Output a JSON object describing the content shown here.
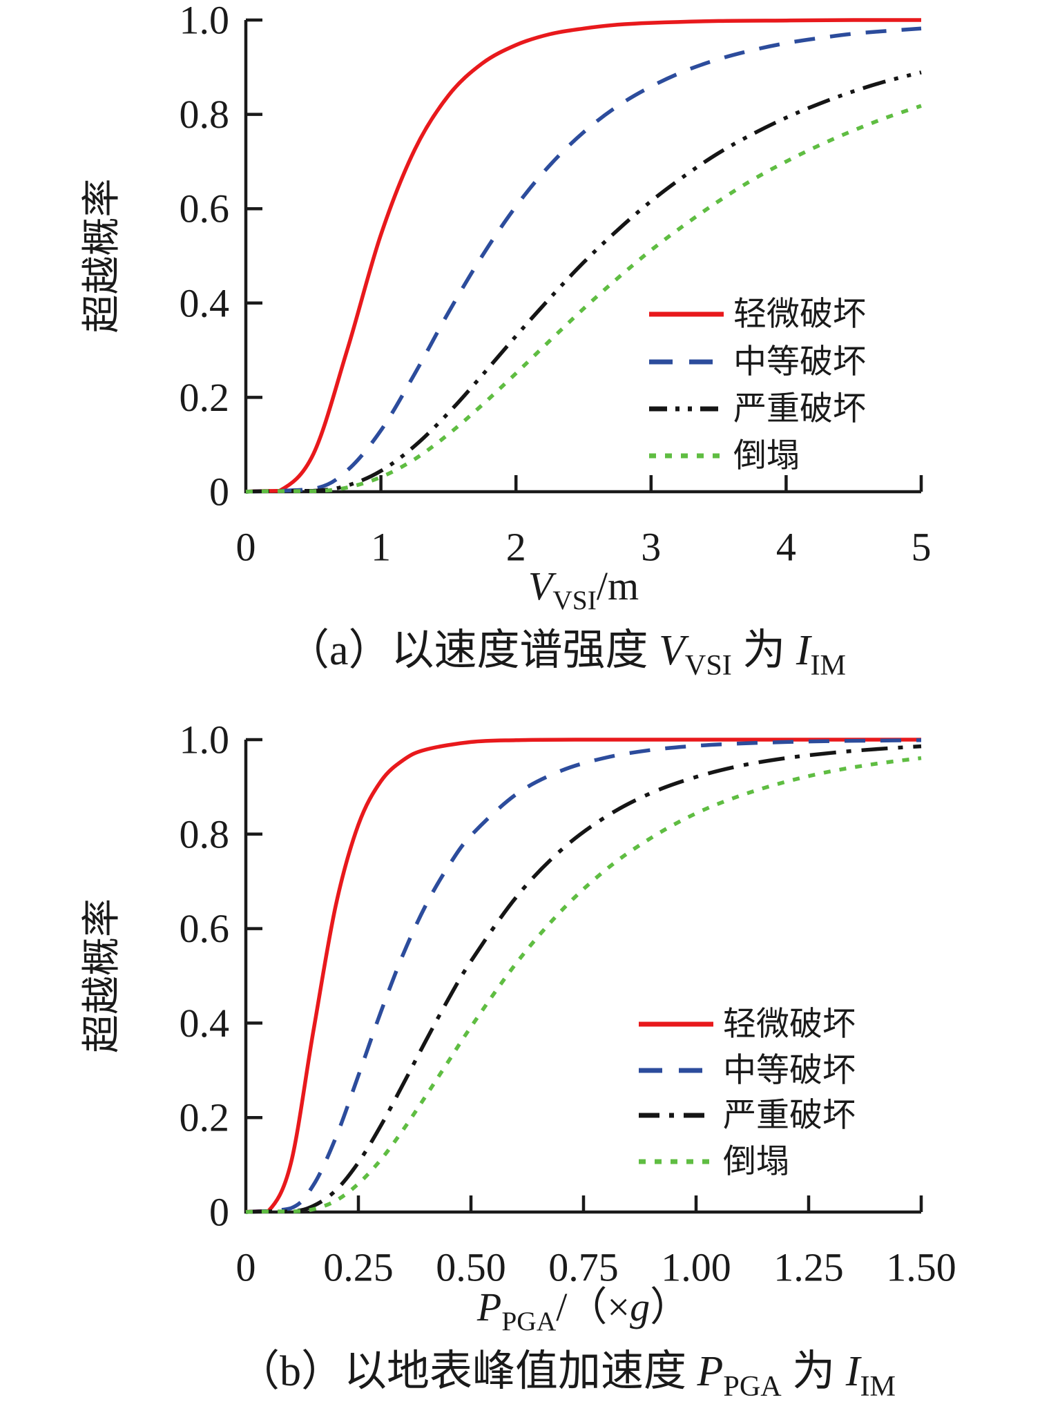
{
  "figure": {
    "background": "#ffffff",
    "text_color": "#1a1a1a"
  },
  "chart_data": [
    {
      "id": "a",
      "type": "line",
      "title": "",
      "caption_parts": [
        {
          "t": "（a）以速度谱强度 ",
          "italic": false,
          "sub": false
        },
        {
          "t": "V",
          "italic": true,
          "sub": false
        },
        {
          "t": "VSI",
          "italic": false,
          "sub": true
        },
        {
          "t": " 为 ",
          "italic": false,
          "sub": false
        },
        {
          "t": "I",
          "italic": true,
          "sub": false
        },
        {
          "t": "IM",
          "italic": false,
          "sub": true
        }
      ],
      "ylabel": "超越概率",
      "xlabel_parts": [
        {
          "t": "V",
          "italic": true,
          "sub": false
        },
        {
          "t": "VSI",
          "italic": false,
          "sub": true
        },
        {
          "t": "/m",
          "italic": false,
          "sub": false
        }
      ],
      "xlim": [
        0,
        5
      ],
      "ylim": [
        0,
        1
      ],
      "grid": false,
      "legend_position": "right-middle",
      "x_ticks": [
        {
          "v": 0,
          "label": "0"
        },
        {
          "v": 1,
          "label": "1"
        },
        {
          "v": 2,
          "label": "2"
        },
        {
          "v": 3,
          "label": "3"
        },
        {
          "v": 4,
          "label": "4"
        },
        {
          "v": 5,
          "label": "5"
        }
      ],
      "y_ticks": [
        {
          "v": 0,
          "label": "0"
        },
        {
          "v": 0.2,
          "label": "0.2"
        },
        {
          "v": 0.4,
          "label": "0.4"
        },
        {
          "v": 0.6,
          "label": "0.6"
        },
        {
          "v": 0.8,
          "label": "0.8"
        },
        {
          "v": 1.0,
          "label": "1.0"
        }
      ],
      "series": [
        {
          "key": "slight",
          "name": "轻微破坏",
          "color": "#e8191c",
          "style": "solid",
          "points": [
            [
              0,
              0
            ],
            [
              0.25,
              0.002
            ],
            [
              0.5,
              0.08
            ],
            [
              0.75,
              0.3
            ],
            [
              1,
              0.545
            ],
            [
              1.25,
              0.725
            ],
            [
              1.5,
              0.84
            ],
            [
              1.75,
              0.908
            ],
            [
              2,
              0.947
            ],
            [
              2.25,
              0.97
            ],
            [
              2.5,
              0.982
            ],
            [
              2.75,
              0.99
            ],
            [
              3,
              0.994
            ],
            [
              3.5,
              0.998
            ],
            [
              4,
              0.999
            ],
            [
              4.5,
              1
            ],
            [
              5,
              1
            ]
          ]
        },
        {
          "key": "moderate",
          "name": "中等破坏",
          "color": "#2c4c9c",
          "style": "dashed",
          "points": [
            [
              0,
              0
            ],
            [
              0.5,
              0.006
            ],
            [
              0.75,
              0.045
            ],
            [
              1,
              0.13
            ],
            [
              1.25,
              0.25
            ],
            [
              1.5,
              0.38
            ],
            [
              1.75,
              0.5
            ],
            [
              2,
              0.605
            ],
            [
              2.25,
              0.692
            ],
            [
              2.5,
              0.762
            ],
            [
              2.75,
              0.817
            ],
            [
              3,
              0.859
            ],
            [
              3.25,
              0.892
            ],
            [
              3.5,
              0.917
            ],
            [
              3.75,
              0.936
            ],
            [
              4,
              0.951
            ],
            [
              4.25,
              0.962
            ],
            [
              4.5,
              0.971
            ],
            [
              4.75,
              0.977
            ],
            [
              5,
              0.982
            ]
          ]
        },
        {
          "key": "severe",
          "name": "严重破坏",
          "color": "#151515",
          "style": "dash-dot-dot",
          "points": [
            [
              0,
              0
            ],
            [
              0.5,
              0.002
            ],
            [
              0.75,
              0.013
            ],
            [
              1,
              0.044
            ],
            [
              1.25,
              0.097
            ],
            [
              1.5,
              0.167
            ],
            [
              1.75,
              0.247
            ],
            [
              2,
              0.33
            ],
            [
              2.25,
              0.41
            ],
            [
              2.5,
              0.486
            ],
            [
              2.75,
              0.554
            ],
            [
              3,
              0.616
            ],
            [
              3.25,
              0.67
            ],
            [
              3.5,
              0.718
            ],
            [
              3.75,
              0.758
            ],
            [
              4,
              0.793
            ],
            [
              4.25,
              0.823
            ],
            [
              4.5,
              0.849
            ],
            [
              4.75,
              0.871
            ],
            [
              5,
              0.889
            ]
          ]
        },
        {
          "key": "collapse",
          "name": "倒塌",
          "color": "#5fbd42",
          "style": "dotted",
          "points": [
            [
              0,
              0
            ],
            [
              0.5,
              0.001
            ],
            [
              0.75,
              0.009
            ],
            [
              1,
              0.031
            ],
            [
              1.25,
              0.069
            ],
            [
              1.5,
              0.122
            ],
            [
              1.75,
              0.184
            ],
            [
              2,
              0.251
            ],
            [
              2.25,
              0.32
            ],
            [
              2.5,
              0.388
            ],
            [
              2.75,
              0.452
            ],
            [
              3,
              0.512
            ],
            [
              3.25,
              0.566
            ],
            [
              3.5,
              0.616
            ],
            [
              3.75,
              0.661
            ],
            [
              4,
              0.7
            ],
            [
              4.25,
              0.735
            ],
            [
              4.5,
              0.766
            ],
            [
              4.75,
              0.794
            ],
            [
              5,
              0.818
            ]
          ]
        }
      ]
    },
    {
      "id": "b",
      "type": "line",
      "title": "",
      "caption_parts": [
        {
          "t": "（b）以地表峰值加速度 ",
          "italic": false,
          "sub": false
        },
        {
          "t": "P",
          "italic": true,
          "sub": false
        },
        {
          "t": "PGA",
          "italic": false,
          "sub": true
        },
        {
          "t": " 为 ",
          "italic": false,
          "sub": false
        },
        {
          "t": "I",
          "italic": true,
          "sub": false
        },
        {
          "t": "IM",
          "italic": false,
          "sub": true
        }
      ],
      "ylabel": "超越概率",
      "xlabel_parts": [
        {
          "t": "P",
          "italic": true,
          "sub": false
        },
        {
          "t": "PGA",
          "italic": false,
          "sub": true
        },
        {
          "t": "/（×",
          "italic": false,
          "sub": false
        },
        {
          "t": "g",
          "italic": true,
          "sub": false
        },
        {
          "t": "）",
          "italic": false,
          "sub": false
        }
      ],
      "xlim": [
        0,
        1.5
      ],
      "ylim": [
        0,
        1
      ],
      "grid": false,
      "legend_position": "right-middle",
      "x_ticks": [
        {
          "v": 0,
          "label": "0"
        },
        {
          "v": 0.25,
          "label": "0.25"
        },
        {
          "v": 0.5,
          "label": "0.50"
        },
        {
          "v": 0.75,
          "label": "0.75"
        },
        {
          "v": 1.0,
          "label": "1.00"
        },
        {
          "v": 1.25,
          "label": "1.25"
        },
        {
          "v": 1.5,
          "label": "1.50"
        }
      ],
      "y_ticks": [
        {
          "v": 0,
          "label": "0"
        },
        {
          "v": 0.2,
          "label": "0.2"
        },
        {
          "v": 0.4,
          "label": "0.4"
        },
        {
          "v": 0.6,
          "label": "0.6"
        },
        {
          "v": 0.8,
          "label": "0.8"
        },
        {
          "v": 1.0,
          "label": "1.0"
        }
      ],
      "series": [
        {
          "key": "slight",
          "name": "轻微破坏",
          "color": "#e8191c",
          "style": "solid",
          "points": [
            [
              0,
              0
            ],
            [
              0.05,
              0.002
            ],
            [
              0.1,
              0.103
            ],
            [
              0.15,
              0.383
            ],
            [
              0.2,
              0.65
            ],
            [
              0.25,
              0.82
            ],
            [
              0.3,
              0.912
            ],
            [
              0.35,
              0.957
            ],
            [
              0.4,
              0.979
            ],
            [
              0.5,
              0.995
            ],
            [
              0.6,
              0.999
            ],
            [
              0.75,
              1
            ],
            [
              1,
              1
            ],
            [
              1.25,
              1
            ],
            [
              1.5,
              1
            ]
          ]
        },
        {
          "key": "moderate",
          "name": "中等破坏",
          "color": "#2c4c9c",
          "style": "dashed",
          "points": [
            [
              0,
              0
            ],
            [
              0.1,
              0.008
            ],
            [
              0.15,
              0.057
            ],
            [
              0.2,
              0.158
            ],
            [
              0.25,
              0.289
            ],
            [
              0.3,
              0.424
            ],
            [
              0.35,
              0.547
            ],
            [
              0.4,
              0.65
            ],
            [
              0.45,
              0.732
            ],
            [
              0.5,
              0.797
            ],
            [
              0.6,
              0.884
            ],
            [
              0.7,
              0.934
            ],
            [
              0.8,
              0.962
            ],
            [
              0.9,
              0.978
            ],
            [
              1,
              0.987
            ],
            [
              1.1,
              0.992
            ],
            [
              1.2,
              0.995
            ],
            [
              1.3,
              0.997
            ],
            [
              1.4,
              0.998
            ],
            [
              1.5,
              0.999
            ]
          ]
        },
        {
          "key": "severe",
          "name": "严重破坏",
          "color": "#151515",
          "style": "dash-dot",
          "points": [
            [
              0,
              0
            ],
            [
              0.1,
              0.001
            ],
            [
              0.15,
              0.013
            ],
            [
              0.2,
              0.046
            ],
            [
              0.25,
              0.105
            ],
            [
              0.3,
              0.183
            ],
            [
              0.35,
              0.272
            ],
            [
              0.4,
              0.363
            ],
            [
              0.45,
              0.451
            ],
            [
              0.5,
              0.531
            ],
            [
              0.6,
              0.666
            ],
            [
              0.7,
              0.766
            ],
            [
              0.8,
              0.837
            ],
            [
              0.9,
              0.887
            ],
            [
              1,
              0.921
            ],
            [
              1.1,
              0.945
            ],
            [
              1.2,
              0.961
            ],
            [
              1.3,
              0.972
            ],
            [
              1.4,
              0.98
            ],
            [
              1.5,
              0.986
            ]
          ]
        },
        {
          "key": "collapse",
          "name": "倒塌",
          "color": "#5fbd42",
          "style": "dotted",
          "points": [
            [
              0,
              0
            ],
            [
              0.1,
              0.001
            ],
            [
              0.15,
              0.006
            ],
            [
              0.2,
              0.024
            ],
            [
              0.25,
              0.06
            ],
            [
              0.3,
              0.111
            ],
            [
              0.35,
              0.175
            ],
            [
              0.4,
              0.246
            ],
            [
              0.45,
              0.319
            ],
            [
              0.5,
              0.392
            ],
            [
              0.6,
              0.526
            ],
            [
              0.7,
              0.637
            ],
            [
              0.8,
              0.725
            ],
            [
              0.9,
              0.792
            ],
            [
              1,
              0.844
            ],
            [
              1.1,
              0.882
            ],
            [
              1.2,
              0.911
            ],
            [
              1.3,
              0.933
            ],
            [
              1.4,
              0.949
            ],
            [
              1.5,
              0.961
            ]
          ]
        }
      ]
    }
  ]
}
